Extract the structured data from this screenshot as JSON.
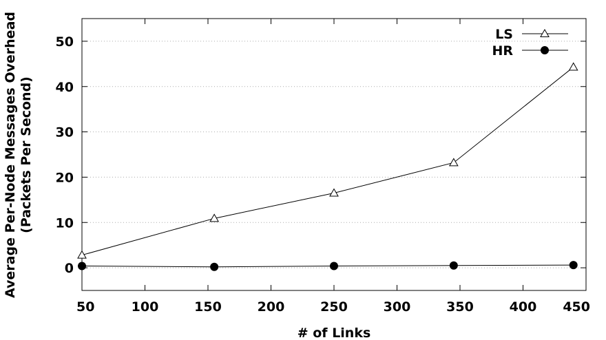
{
  "chart_data": {
    "type": "line",
    "xlabel": "# of Links",
    "ylabel": "Average Per-Node Messages Overhead",
    "ylabel2": "(Packets Per Second)",
    "xlim": [
      50,
      450
    ],
    "ylim": [
      -5,
      55
    ],
    "xticks": [
      50,
      100,
      150,
      200,
      250,
      300,
      350,
      400,
      450
    ],
    "yticks": [
      0,
      10,
      20,
      30,
      40,
      50
    ],
    "grid": "horizontal-dotted",
    "legend_position": "top-right",
    "series": [
      {
        "name": "LS",
        "marker": "triangle-open",
        "x": [
          50,
          155,
          250,
          345,
          440
        ],
        "y": [
          2.8,
          10.9,
          16.5,
          23.2,
          44.3
        ]
      },
      {
        "name": "HR",
        "marker": "circle-filled",
        "x": [
          50,
          155,
          250,
          345,
          440
        ],
        "y": [
          0.4,
          0.2,
          0.4,
          0.5,
          0.6
        ]
      }
    ]
  }
}
